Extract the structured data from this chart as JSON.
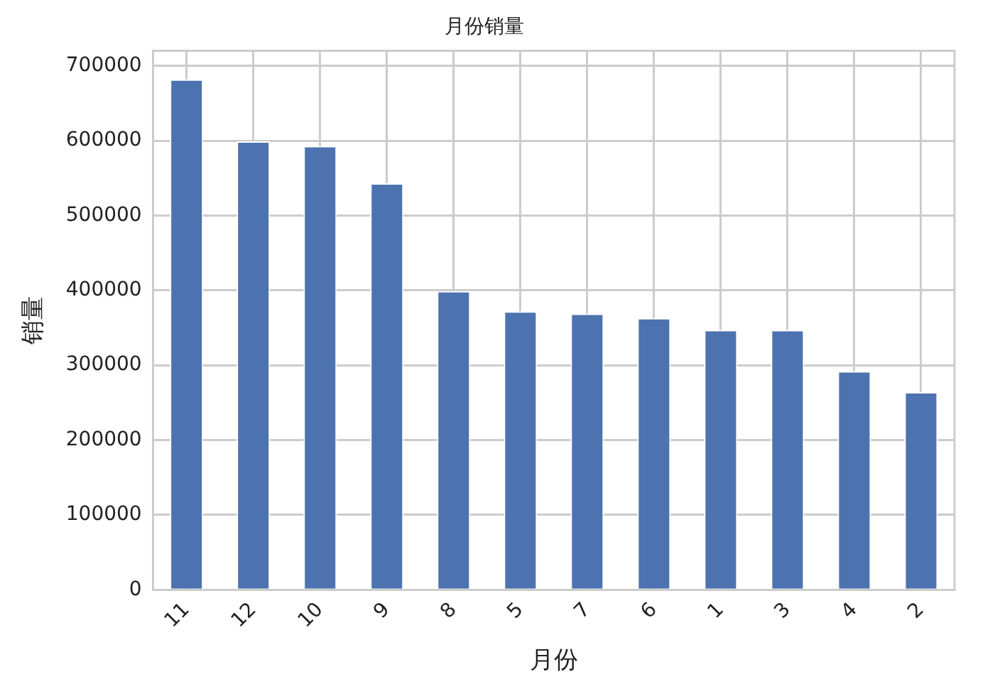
{
  "chart_data": {
    "type": "bar",
    "title": "月份销量",
    "xlabel": "月份",
    "ylabel": "销量",
    "categories": [
      "11",
      "12",
      "10",
      "9",
      "8",
      "5",
      "7",
      "6",
      "1",
      "3",
      "4",
      "2"
    ],
    "values": [
      682000,
      599000,
      593000,
      543000,
      399000,
      372000,
      369000,
      363000,
      347000,
      347000,
      292000,
      264000
    ],
    "color": "#4c72b0",
    "ylim": [
      0,
      720000
    ],
    "yticks": [
      0,
      100000,
      200000,
      300000,
      400000,
      500000,
      600000,
      700000
    ],
    "grid": true,
    "legend": false
  }
}
